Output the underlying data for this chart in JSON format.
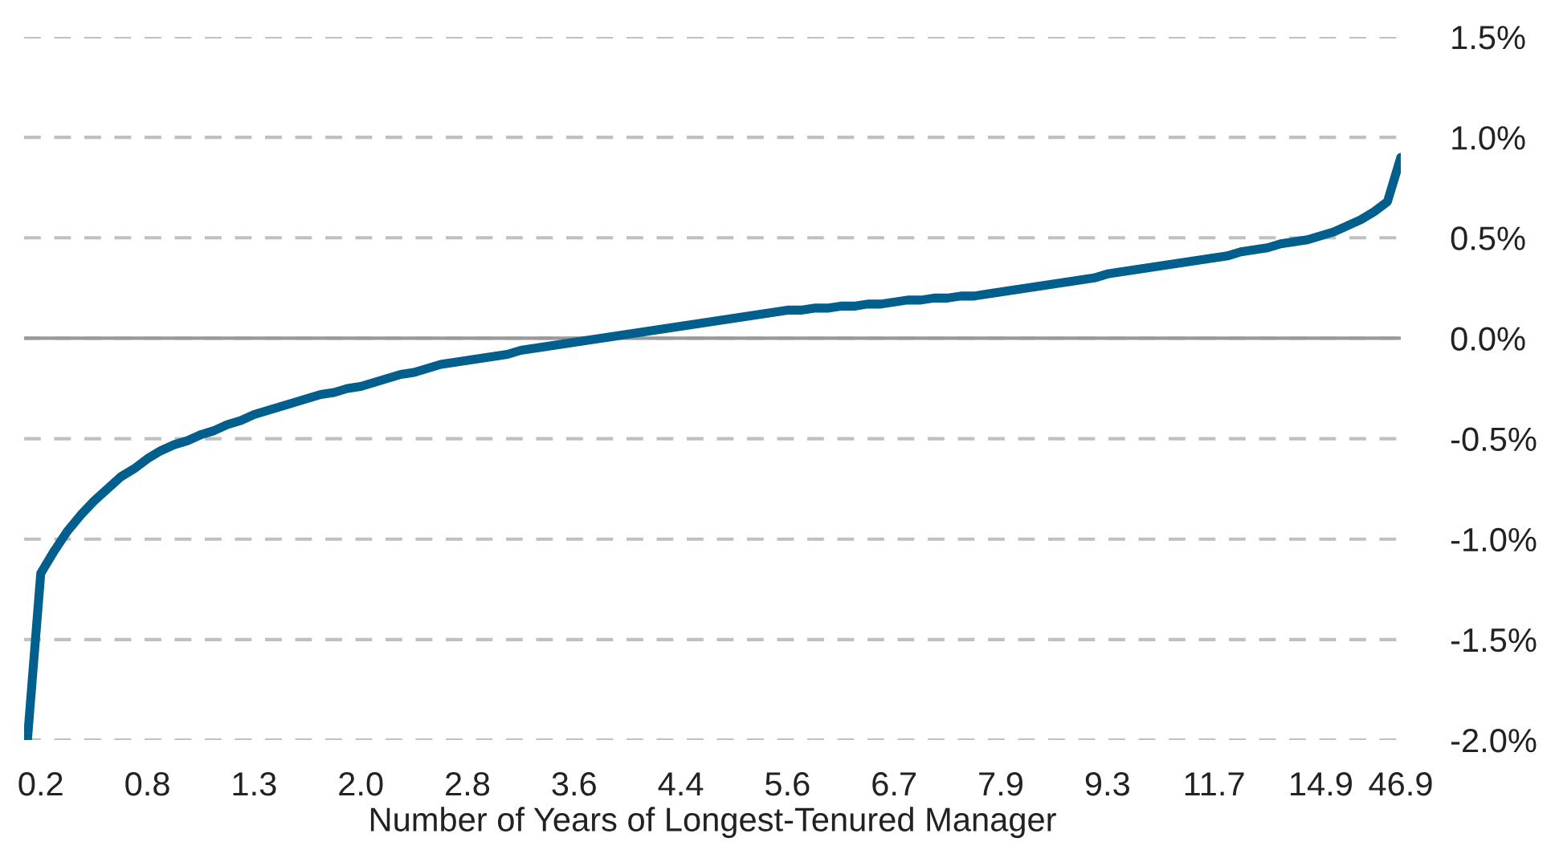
{
  "chart_data": {
    "type": "line",
    "xlabel": "Number of Years of Longest-Tenured Manager",
    "categories": [
      null,
      "0.2",
      null,
      null,
      null,
      null,
      null,
      null,
      null,
      "0.8",
      null,
      null,
      null,
      null,
      null,
      null,
      null,
      "1.3",
      null,
      null,
      null,
      null,
      null,
      null,
      null,
      "2.0",
      null,
      null,
      null,
      null,
      null,
      null,
      null,
      "2.8",
      null,
      null,
      null,
      null,
      null,
      null,
      null,
      "3.6",
      null,
      null,
      null,
      null,
      null,
      null,
      null,
      "4.4",
      null,
      null,
      null,
      null,
      null,
      null,
      null,
      "5.6",
      null,
      null,
      null,
      null,
      null,
      null,
      null,
      "6.7",
      null,
      null,
      null,
      null,
      null,
      null,
      null,
      "7.9",
      null,
      null,
      null,
      null,
      null,
      null,
      null,
      "9.3",
      null,
      null,
      null,
      null,
      null,
      null,
      null,
      "11.7",
      null,
      null,
      null,
      null,
      null,
      null,
      null,
      "14.9",
      null,
      null,
      null,
      null,
      null,
      "46.9"
    ],
    "ylim": [
      -2.0,
      1.5
    ],
    "yticks": [
      {
        "value": -2.0,
        "label": "-2.0%"
      },
      {
        "value": -1.5,
        "label": "-1.5%"
      },
      {
        "value": -1.0,
        "label": "-1.0%"
      },
      {
        "value": -0.5,
        "label": "-0.5%"
      },
      {
        "value": 0,
        "label": "0.0%"
      },
      {
        "value": 0.5,
        "label": "0.5%"
      },
      {
        "value": 1.0,
        "label": "1.0%"
      },
      {
        "value": 1.5,
        "label": "1.5%"
      }
    ],
    "grid": "y",
    "ref_lines": [
      {
        "axis": "y",
        "value": 0,
        "color": "#999999",
        "line_style": "solid"
      }
    ],
    "series": [
      {
        "color": "#005f8c",
        "values": [
          -2.0,
          -1.17,
          -1.06,
          -0.96,
          -0.88,
          -0.81,
          -0.75,
          -0.69,
          -0.65,
          -0.6,
          -0.56,
          -0.53,
          -0.51,
          -0.48,
          -0.46,
          -0.43,
          -0.41,
          -0.38,
          -0.36,
          -0.34,
          -0.32,
          -0.3,
          -0.28,
          -0.27,
          -0.25,
          -0.24,
          -0.22,
          -0.2,
          -0.18,
          -0.17,
          -0.15,
          -0.13,
          -0.12,
          -0.11,
          -0.1,
          -0.09,
          -0.08,
          -0.06,
          -0.05,
          -0.04,
          -0.03,
          -0.02,
          -0.01,
          0.0,
          0.01,
          0.02,
          0.03,
          0.04,
          0.05,
          0.06,
          0.07,
          0.08,
          0.09,
          0.1,
          0.11,
          0.12,
          0.13,
          0.14,
          0.14,
          0.15,
          0.15,
          0.16,
          0.16,
          0.17,
          0.17,
          0.18,
          0.19,
          0.19,
          0.2,
          0.2,
          0.21,
          0.21,
          0.22,
          0.23,
          0.24,
          0.25,
          0.26,
          0.27,
          0.28,
          0.29,
          0.3,
          0.32,
          0.33,
          0.34,
          0.35,
          0.36,
          0.37,
          0.38,
          0.39,
          0.4,
          0.41,
          0.43,
          0.44,
          0.45,
          0.47,
          0.48,
          0.49,
          0.51,
          0.53,
          0.56,
          0.59,
          0.63,
          0.68,
          0.9
        ]
      }
    ]
  }
}
